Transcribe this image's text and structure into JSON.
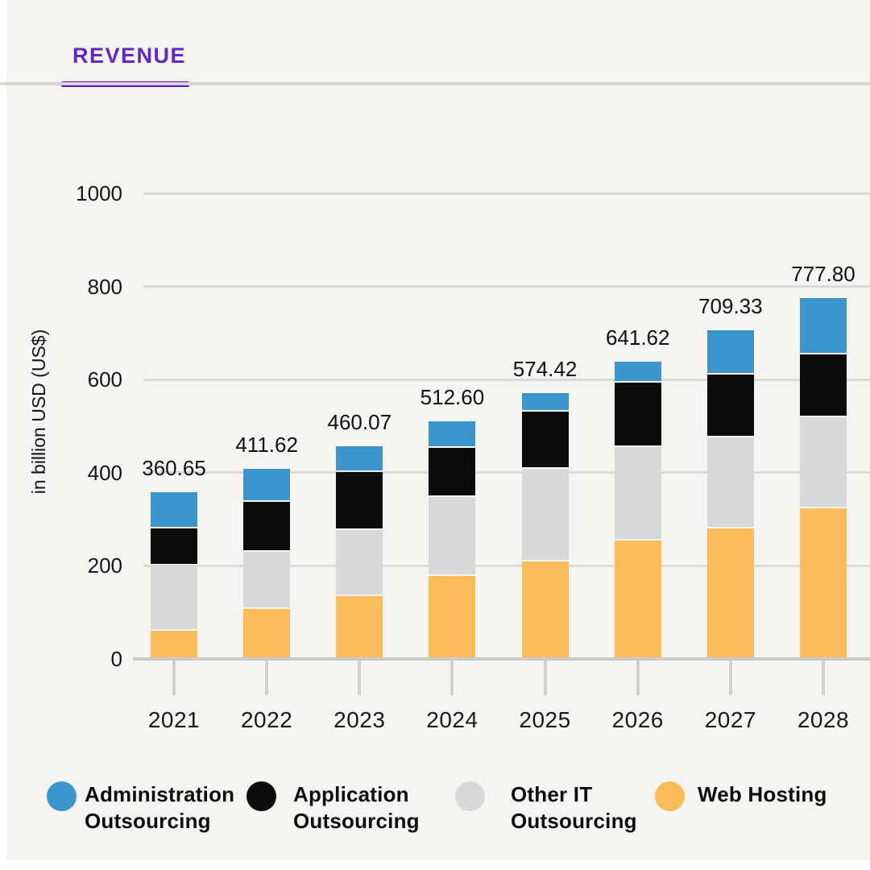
{
  "header": {
    "tab_label": "REVENUE",
    "accent_text_color": "#6227c8",
    "underline_color": "#5a16d4"
  },
  "y_axis": {
    "title": "in billion USD (US$)"
  },
  "chart_data": {
    "type": "bar",
    "stacked": true,
    "title": "REVENUE",
    "ylabel": "in billion USD (US$)",
    "categories": [
      "2021",
      "2022",
      "2023",
      "2024",
      "2025",
      "2026",
      "2027",
      "2028"
    ],
    "series": [
      {
        "name": "Web Hosting",
        "color": "#fbbb58",
        "values": [
          64,
          111,
          139,
          181,
          212,
          257,
          284,
          327
        ]
      },
      {
        "name": "Other IT Outsourcing",
        "color": "#d8d8d8",
        "values": [
          141,
          122,
          141,
          170,
          200,
          201,
          195,
          196
        ]
      },
      {
        "name": "Application Outsourcing",
        "color": "#0c0c0c",
        "values": [
          79,
          107,
          124,
          106,
          122,
          139,
          135,
          135
        ]
      },
      {
        "name": "Administration Outsourcing",
        "color": "#3b96ce",
        "values": [
          77,
          72,
          56,
          56,
          40,
          45,
          95,
          120
        ]
      }
    ],
    "totals_labels": [
      "360.65",
      "411.62",
      "460.07",
      "512.60",
      "574.42",
      "641.62",
      "709.33",
      "777.80"
    ],
    "ylim": [
      0,
      1000
    ],
    "yticks": [
      0,
      200,
      400,
      600,
      800,
      1000
    ],
    "grid": true,
    "legend_position": "bottom"
  },
  "legend": {
    "items": [
      {
        "label": "Administration\nOutsourcing",
        "color": "#3b96ce"
      },
      {
        "label": "Application\nOutsourcing",
        "color": "#0c0c0c"
      },
      {
        "label": "Other IT\nOutsourcing",
        "color": "#d8d8d8"
      },
      {
        "label": "Web Hosting",
        "color": "#fbbb58"
      }
    ]
  }
}
